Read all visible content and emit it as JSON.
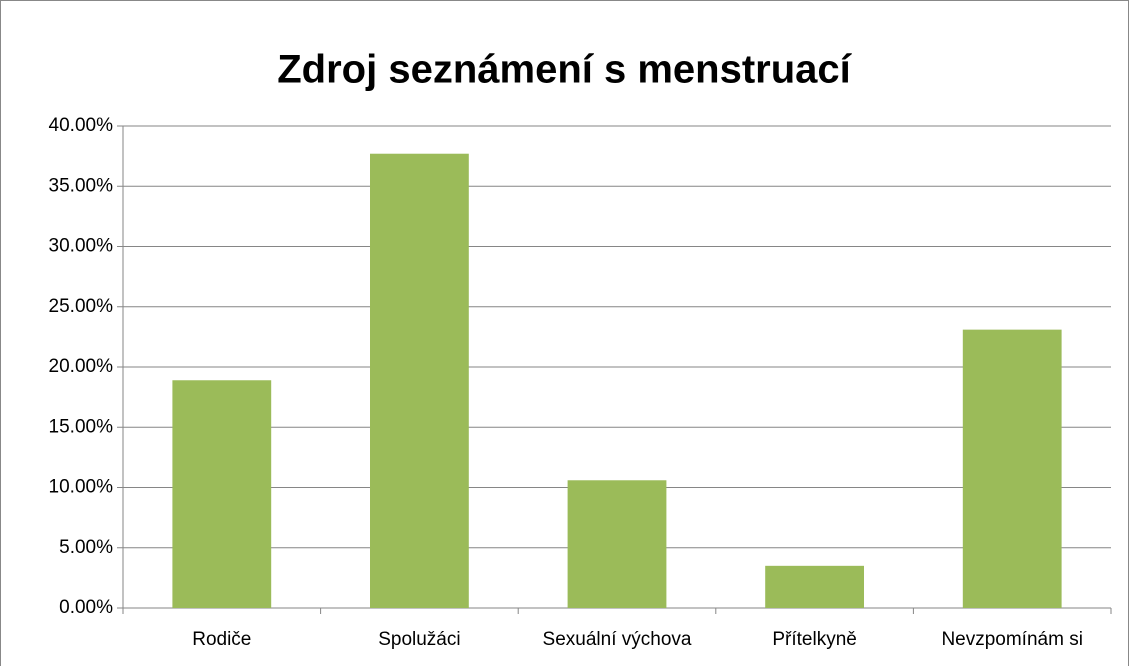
{
  "chart_data": {
    "type": "bar",
    "title": "Zdroj seznámení s menstruací",
    "categories": [
      "Rodiče",
      "Spolužáci",
      "Sexuální výchova",
      "Přítelkyně",
      "Nevzpomínám si"
    ],
    "values": [
      18.9,
      37.7,
      10.6,
      3.5,
      23.1
    ],
    "color": "#9bbb59",
    "ylim": [
      0,
      40
    ],
    "yticks": [
      {
        "value": 0,
        "label": "0.00%"
      },
      {
        "value": 5,
        "label": "5.00%"
      },
      {
        "value": 10,
        "label": "10.00%"
      },
      {
        "value": 15,
        "label": "15.00%"
      },
      {
        "value": 20,
        "label": "20.00%"
      },
      {
        "value": 25,
        "label": "25.00%"
      },
      {
        "value": 30,
        "label": "30.00%"
      },
      {
        "value": 35,
        "label": "35.00%"
      },
      {
        "value": 40,
        "label": "40.00%"
      }
    ],
    "grid": true
  }
}
